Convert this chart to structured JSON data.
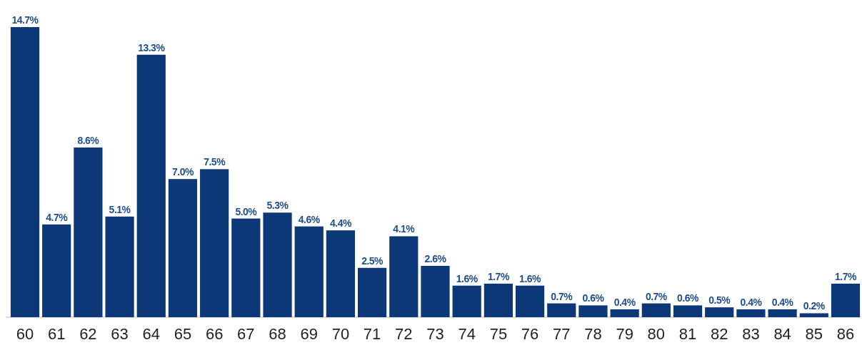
{
  "chart_data": {
    "type": "bar",
    "categories": [
      "60",
      "61",
      "62",
      "63",
      "64",
      "65",
      "66",
      "67",
      "68",
      "69",
      "70",
      "71",
      "72",
      "73",
      "74",
      "75",
      "76",
      "77",
      "78",
      "79",
      "80",
      "81",
      "82",
      "83",
      "84",
      "85",
      "86"
    ],
    "values": [
      14.7,
      4.7,
      8.6,
      5.1,
      13.3,
      7.0,
      7.5,
      5.0,
      5.3,
      4.6,
      4.4,
      2.5,
      4.1,
      2.6,
      1.6,
      1.7,
      1.6,
      0.7,
      0.6,
      0.4,
      0.7,
      0.6,
      0.5,
      0.4,
      0.4,
      0.2,
      1.7
    ],
    "value_labels": [
      "14.7%",
      "4.7%",
      "8.6%",
      "5.1%",
      "13.3%",
      "7.0%",
      "7.5%",
      "5.0%",
      "5.3%",
      "4.6%",
      "4.4%",
      "2.5%",
      "4.1%",
      "2.6%",
      "1.6%",
      "1.7%",
      "1.6%",
      "0.7%",
      "0.6%",
      "0.4%",
      "0.7%",
      "0.6%",
      "0.5%",
      "0.4%",
      "0.4%",
      "0.2%",
      "1.7%"
    ],
    "color": "#0d3878"
  }
}
